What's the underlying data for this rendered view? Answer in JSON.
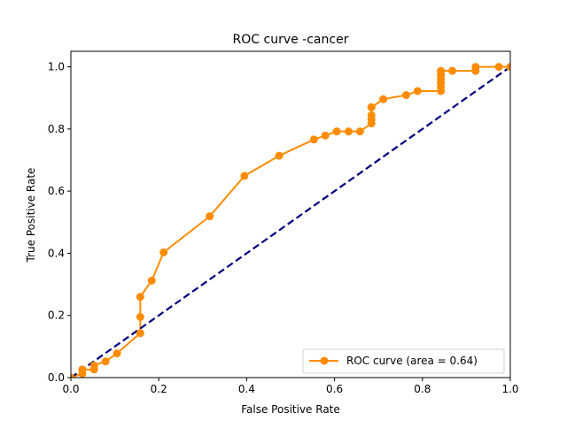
{
  "chart_data": {
    "type": "line",
    "title": "ROC curve -cancer",
    "xlabel": "False Positive Rate",
    "ylabel": "True Positive Rate",
    "xlim": [
      0.0,
      1.0
    ],
    "ylim": [
      0.0,
      1.05
    ],
    "xticks": [
      0.0,
      0.2,
      0.4,
      0.6,
      0.8,
      1.0
    ],
    "xtick_labels": [
      "0.0",
      "0.2",
      "0.4",
      "0.6",
      "0.8",
      "1.0"
    ],
    "yticks": [
      0.0,
      0.2,
      0.4,
      0.6,
      0.8,
      1.0
    ],
    "ytick_labels": [
      "0.0",
      "0.2",
      "0.4",
      "0.6",
      "0.8",
      "1.0"
    ],
    "grid": false,
    "legend_position": "lower-right",
    "series": [
      {
        "name": "ROC curve (area = 0.64)",
        "color": "#ff8c00",
        "marker": "circle",
        "x": [
          0.0,
          0.026,
          0.026,
          0.053,
          0.053,
          0.079,
          0.105,
          0.158,
          0.158,
          0.158,
          0.184,
          0.211,
          0.316,
          0.395,
          0.474,
          0.553,
          0.579,
          0.605,
          0.632,
          0.658,
          0.684,
          0.684,
          0.684,
          0.684,
          0.684,
          0.711,
          0.763,
          0.789,
          0.842,
          0.842,
          0.842,
          0.842,
          0.842,
          0.842,
          0.868,
          0.921,
          0.921,
          0.974,
          1.0
        ],
        "y": [
          0.0,
          0.013,
          0.026,
          0.026,
          0.039,
          0.052,
          0.078,
          0.143,
          0.195,
          0.26,
          0.312,
          0.403,
          0.519,
          0.649,
          0.714,
          0.766,
          0.779,
          0.792,
          0.792,
          0.792,
          0.818,
          0.831,
          0.844,
          0.87,
          0.87,
          0.896,
          0.909,
          0.922,
          0.922,
          0.935,
          0.948,
          0.961,
          0.974,
          0.987,
          0.987,
          0.987,
          1.0,
          1.0,
          1.0
        ]
      },
      {
        "color": "#000080",
        "style": "dashed",
        "x": [
          0.0,
          1.0
        ],
        "y": [
          0.0,
          1.0
        ]
      }
    ]
  }
}
